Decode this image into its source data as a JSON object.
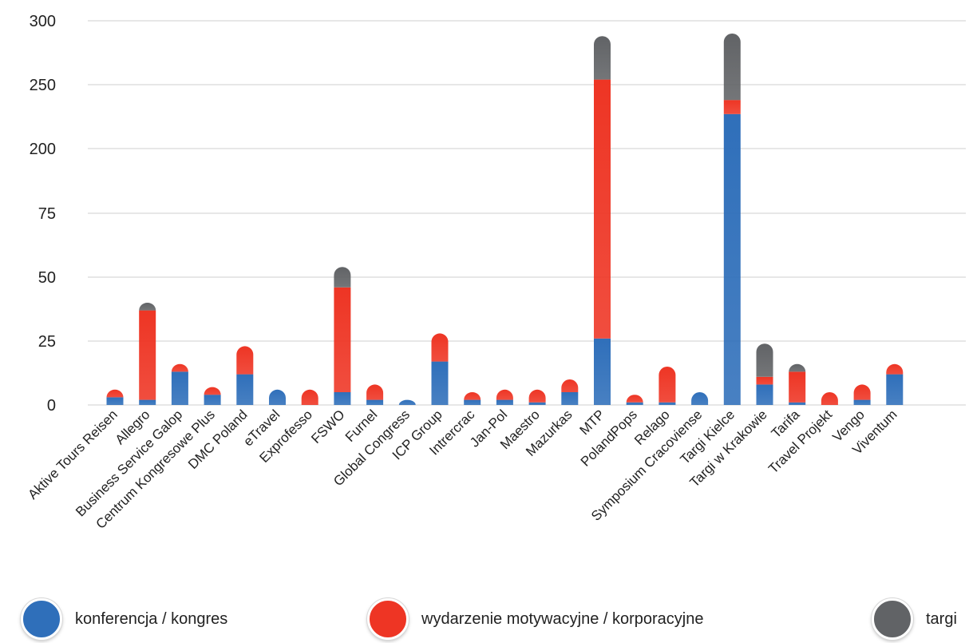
{
  "chart_data": {
    "type": "bar",
    "stacked": true,
    "categories": [
      "Aktive Tours Reisen",
      "Allegro",
      "Business Service Galop",
      "Centrum Kongresowe Plus",
      "DMC Poland",
      "eTravel",
      "Exprofesso",
      "FSWO",
      "Furnel",
      "Global Congress",
      "ICP Group",
      "Intrercrac",
      "Jan-Pol",
      "Maestro",
      "Mazurkas",
      "MTP",
      "PolandPops",
      "Relago",
      "Symposium Cracoviense",
      "Targi Kielce",
      "Targi w Krakowie",
      "Tarifa",
      "Travel Projekt",
      "Vengo",
      "Viventum"
    ],
    "series": [
      {
        "name": "konferencja / kongres",
        "color": "#2f6fba",
        "values": [
          3,
          2,
          13,
          4,
          12,
          6,
          0,
          5,
          2,
          2,
          17,
          2,
          2,
          1,
          5,
          26,
          1,
          1,
          5,
          227,
          8,
          1,
          0,
          2,
          12
        ]
      },
      {
        "name": "wydarzenie motywacyjne / korporacyjne",
        "color": "#ee3524",
        "values": [
          3,
          35,
          3,
          3,
          11,
          0,
          6,
          41,
          6,
          0,
          11,
          3,
          4,
          5,
          5,
          228,
          3,
          14,
          0,
          11,
          3,
          12,
          5,
          6,
          4
        ]
      },
      {
        "name": "targi",
        "color": "#616366",
        "values": [
          0,
          3,
          0,
          0,
          0,
          0,
          0,
          8,
          0,
          0,
          0,
          0,
          0,
          0,
          0,
          34,
          0,
          0,
          0,
          52,
          13,
          3,
          0,
          0,
          0
        ]
      }
    ],
    "y_tick_labels": [
      "0",
      "25",
      "50",
      "75",
      "200",
      "250",
      "300"
    ],
    "y_scale_note": "broken",
    "grid": true,
    "legend_position": "bottom"
  },
  "legend": {
    "items": [
      {
        "label": "konferencja / kongres",
        "color": "#2f6fba"
      },
      {
        "label": "wydarzenie motywacyjne / korporacyjne",
        "color": "#ee3524"
      },
      {
        "label": "targi",
        "color": "#616366"
      }
    ]
  }
}
